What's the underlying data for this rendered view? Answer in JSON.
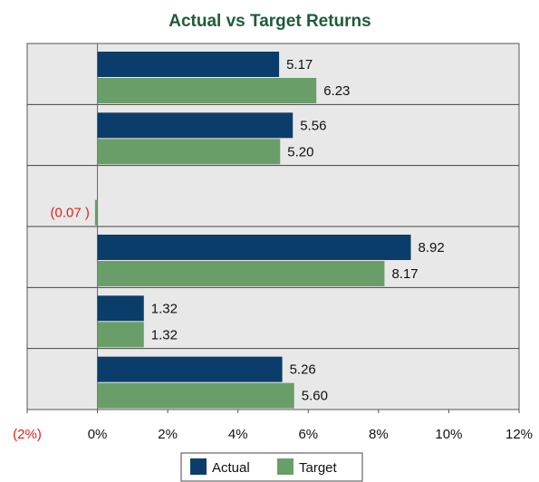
{
  "chart_data": {
    "type": "hbar",
    "title": "Actual vs Target Returns",
    "categories": [
      null,
      null,
      null,
      null,
      null,
      null
    ],
    "series": [
      {
        "name": "Actual",
        "color": "#0b3d6b",
        "values": [
          5.17,
          5.56,
          null,
          8.92,
          1.32,
          5.26
        ],
        "value_labels": [
          "5.17",
          "5.56",
          null,
          "8.92",
          "1.32",
          "5.26"
        ]
      },
      {
        "name": "Target",
        "color": "#6a9e68",
        "values": [
          6.23,
          5.2,
          -0.07,
          8.17,
          1.32,
          5.6
        ],
        "value_labels": [
          "6.23",
          "5.20",
          "(0.07 )",
          "8.17",
          "1.32",
          "5.60"
        ]
      }
    ],
    "xlim": [
      -2,
      12
    ],
    "xticks": [
      {
        "value": -2,
        "label": "(2%)"
      },
      {
        "value": 0,
        "label": "0%"
      },
      {
        "value": 2,
        "label": "2%"
      },
      {
        "value": 4,
        "label": "4%"
      },
      {
        "value": 6,
        "label": "6%"
      },
      {
        "value": 8,
        "label": "8%"
      },
      {
        "value": 10,
        "label": "10%"
      },
      {
        "value": 12,
        "label": "12%"
      }
    ],
    "legend": "bottom"
  }
}
